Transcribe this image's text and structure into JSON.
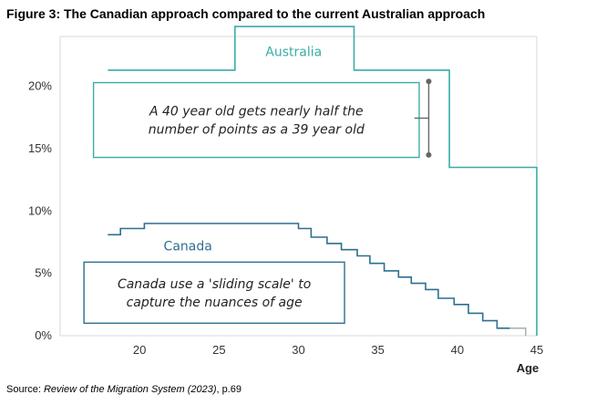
{
  "figure_title": "Figure 3: The Canadian approach compared to the current Australian approach",
  "source": {
    "prefix": "Source: ",
    "title": "Review of the Migration System (2023)",
    "suffix": ", p.69"
  },
  "colors": {
    "australia": "#3aaca6",
    "canada": "#2d6f90",
    "canada_zero": "#aab4b8",
    "annotation": "#666666",
    "axis_text": "#333333",
    "plot_border": "#d9d9d9"
  },
  "chart_data": {
    "type": "line",
    "xlabel": "Age",
    "ylabel": "",
    "xlim": [
      15,
      45
    ],
    "ylim": [
      0,
      24
    ],
    "x_ticks": [
      20,
      25,
      30,
      35,
      40,
      45
    ],
    "y_ticks": [
      0,
      5,
      10,
      15,
      20
    ],
    "y_tick_labels": [
      "0%",
      "5%",
      "10%",
      "15%",
      "20%"
    ],
    "grid": false,
    "legend": "none",
    "series": [
      {
        "name": "Australia",
        "step": true,
        "points": [
          [
            18,
            21.3
          ],
          [
            26,
            21.3
          ],
          [
            26,
            24.8
          ],
          [
            33.5,
            24.8
          ],
          [
            33.5,
            21.3
          ],
          [
            39.5,
            21.3
          ],
          [
            39.5,
            13.5
          ],
          [
            45,
            13.5
          ],
          [
            45,
            0
          ]
        ]
      },
      {
        "name": "Canada",
        "step": true,
        "points": [
          [
            18,
            8.1
          ],
          [
            18.8,
            8.1
          ],
          [
            18.8,
            8.6
          ],
          [
            20.3,
            8.6
          ],
          [
            20.3,
            9.0
          ],
          [
            30,
            9.0
          ],
          [
            30,
            8.6
          ],
          [
            30.8,
            8.6
          ],
          [
            30.8,
            7.9
          ],
          [
            31.8,
            7.9
          ],
          [
            31.8,
            7.4
          ],
          [
            32.7,
            7.4
          ],
          [
            32.7,
            6.9
          ],
          [
            33.7,
            6.9
          ],
          [
            33.7,
            6.4
          ],
          [
            34.5,
            6.4
          ],
          [
            34.5,
            5.8
          ],
          [
            35.4,
            5.8
          ],
          [
            35.4,
            5.2
          ],
          [
            36.3,
            5.2
          ],
          [
            36.3,
            4.7
          ],
          [
            37.1,
            4.7
          ],
          [
            37.1,
            4.2
          ],
          [
            38,
            4.2
          ],
          [
            38,
            3.7
          ],
          [
            38.8,
            3.7
          ],
          [
            38.8,
            3.0
          ],
          [
            39.8,
            3.0
          ],
          [
            39.8,
            2.5
          ],
          [
            40.7,
            2.5
          ],
          [
            40.7,
            1.8
          ],
          [
            41.6,
            1.8
          ],
          [
            41.6,
            1.2
          ],
          [
            42.5,
            1.2
          ],
          [
            42.5,
            0.6
          ],
          [
            43.3,
            0.6
          ]
        ]
      },
      {
        "name": "",
        "step": true,
        "points": [
          [
            43.3,
            0.6
          ],
          [
            44.3,
            0.6
          ],
          [
            44.3,
            0
          ]
        ]
      }
    ],
    "annotations": [
      {
        "text": "A 40 year old gets nearly half the\nnumber of points as a 39 year old",
        "box": [
          17.1,
          14.3,
          37.6,
          20.3
        ],
        "series": "Australia"
      },
      {
        "text": "Canada use a 'sliding scale' to\ncapture the nuances of age",
        "box": [
          16.5,
          1.0,
          32.9,
          5.9
        ],
        "series": "Canada"
      }
    ],
    "bracket": {
      "x": 38.2,
      "y_top": 20.4,
      "y_bottom": 14.5,
      "x_tick_start": 37.3
    }
  }
}
